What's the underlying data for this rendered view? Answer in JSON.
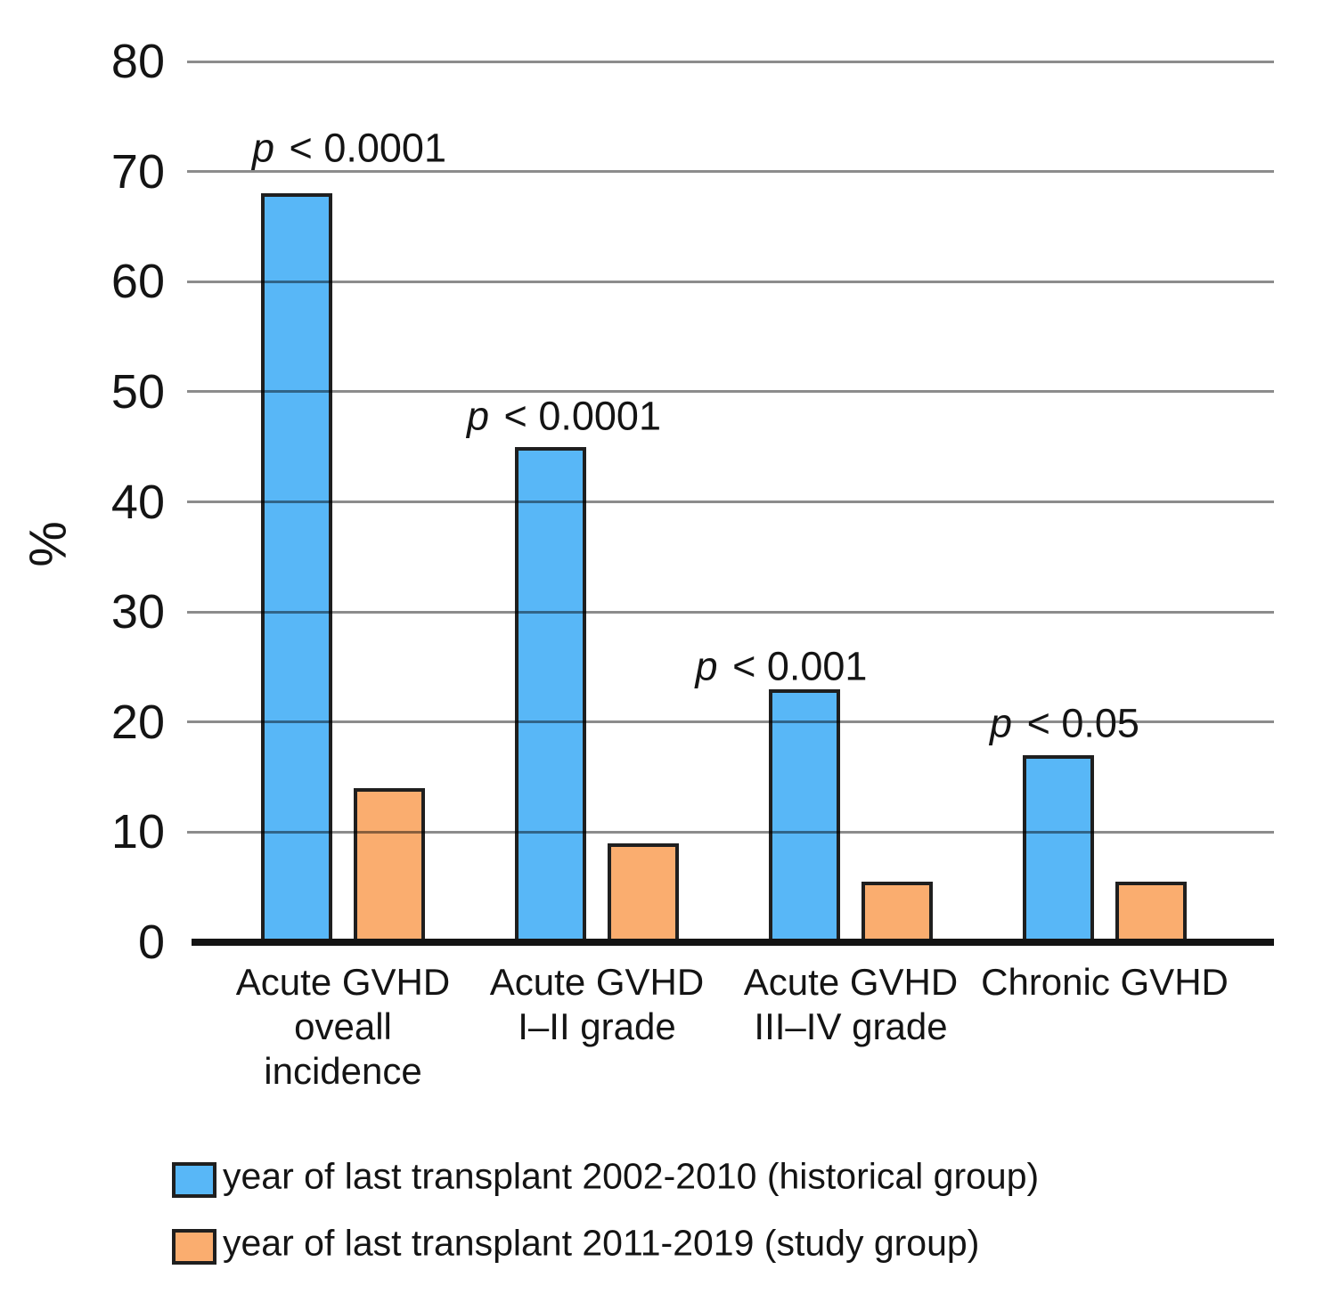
{
  "chart_data": {
    "type": "bar",
    "title": "",
    "xlabel": "",
    "ylabel": "%",
    "ylim": [
      0,
      80
    ],
    "ytick_step": 10,
    "yticks": [
      80,
      70,
      60,
      50,
      40,
      30,
      20,
      10,
      0
    ],
    "grid": true,
    "legend_position": "bottom",
    "categories": [
      {
        "lines": [
          "Acute GVHD",
          "oveall",
          "incidence"
        ]
      },
      {
        "lines": [
          "Acute GVHD",
          "I–II grade"
        ]
      },
      {
        "lines": [
          "Acute GVHD",
          "III–IV grade"
        ]
      },
      {
        "lines": [
          "Chronic GVHD"
        ]
      }
    ],
    "series": [
      {
        "name": "year of last transplant 2002-2010 (historical group)",
        "color": "#58B7F7",
        "values": [
          68,
          45,
          23,
          17
        ]
      },
      {
        "name": "year of last transplant 2011-2019 (study group)",
        "color": "#FAAD6F",
        "values": [
          14,
          9,
          5.5,
          5.5
        ]
      }
    ],
    "annotations": [
      {
        "label": "p < 0.0001"
      },
      {
        "label": "p < 0.0001"
      },
      {
        "label": "p < 0.001"
      },
      {
        "label": "p < 0.05"
      }
    ],
    "colors": {
      "bar_border": "#1f1f1f",
      "gridline": "#8c8c8c",
      "axis": "#141414",
      "text": "#141414",
      "background": "#ffffff"
    }
  }
}
